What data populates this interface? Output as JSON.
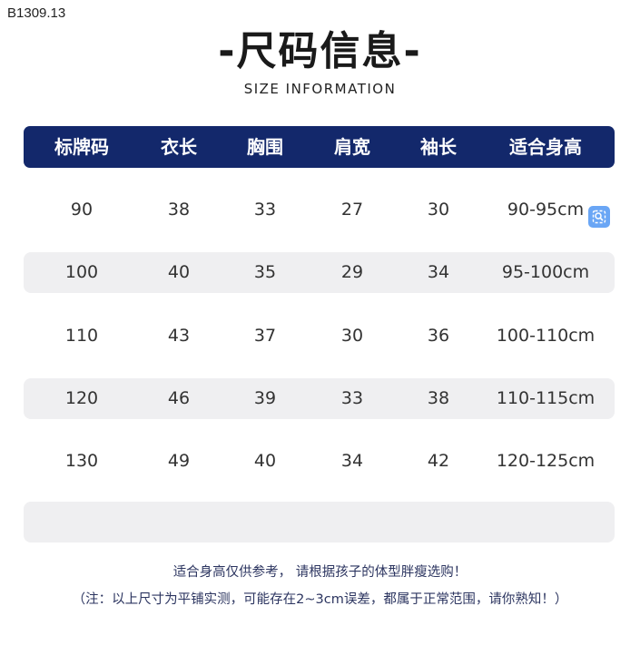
{
  "product_code": "B1309.13",
  "title": "-尺码信息-",
  "subtitle": "SIZE INFORMATION",
  "table": {
    "headers": [
      "标牌码",
      "衣长",
      "胸围",
      "肩宽",
      "袖长",
      "适合身高"
    ],
    "rows": [
      [
        "90",
        "38",
        "33",
        "27",
        "30",
        "90-95cm"
      ],
      [
        "100",
        "40",
        "35",
        "29",
        "34",
        "95-100cm"
      ],
      [
        "110",
        "43",
        "37",
        "30",
        "36",
        "100-110cm"
      ],
      [
        "120",
        "46",
        "39",
        "33",
        "38",
        "110-115cm"
      ],
      [
        "130",
        "49",
        "40",
        "34",
        "42",
        "120-125cm"
      ]
    ]
  },
  "notes": {
    "line1": "适合身高仅供参考， 请根据孩子的体型胖瘦选购！",
    "line2": "（注：以上尺寸为平铺实测，可能存在2~3cm误差，都属于正常范围，请你熟知！）"
  },
  "icons": {
    "overlay": "zoom-search-icon"
  },
  "colors": {
    "header_bg": "#13286b",
    "stripe": "#efeff1",
    "note_text": "#2c3560",
    "zoom_button": "#6aa6f5"
  }
}
